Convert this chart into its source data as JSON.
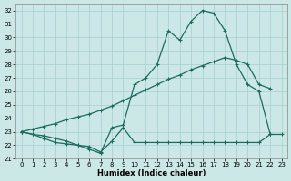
{
  "xlabel": "Humidex (Indice chaleur)",
  "bg_color": "#cce8e6",
  "grid_color": "#a8cfcc",
  "line_color": "#1a6b5a",
  "ylim": [
    21,
    32.5
  ],
  "yticks": [
    21,
    22,
    23,
    24,
    25,
    26,
    27,
    28,
    29,
    30,
    31,
    32
  ],
  "xticks": [
    0,
    1,
    2,
    3,
    4,
    5,
    6,
    7,
    8,
    9,
    10,
    11,
    12,
    13,
    14,
    15,
    16,
    17,
    18,
    19,
    20,
    21,
    22,
    23
  ],
  "line_upper_x": [
    0,
    1,
    2,
    3,
    4,
    5,
    6,
    7,
    8,
    9,
    10,
    11,
    12,
    13,
    14,
    15,
    16,
    17,
    18,
    19,
    20,
    21,
    22
  ],
  "line_upper_y": [
    23.0,
    22.8,
    22.7,
    22.5,
    22.3,
    22.0,
    21.7,
    21.4,
    23.3,
    23.5,
    26.5,
    27.0,
    28.0,
    30.5,
    29.8,
    31.2,
    32.0,
    31.8,
    30.5,
    28.0,
    26.5,
    26.0,
    22.8
  ],
  "line_mid_x": [
    0,
    1,
    2,
    3,
    4,
    5,
    6,
    7,
    8,
    9,
    10,
    11,
    12,
    13,
    14,
    15,
    16,
    17,
    18,
    19,
    20,
    21,
    22
  ],
  "line_mid_y": [
    23.0,
    23.2,
    23.4,
    23.6,
    23.9,
    24.1,
    24.3,
    24.6,
    24.9,
    25.3,
    25.7,
    26.1,
    26.5,
    26.9,
    27.2,
    27.6,
    27.9,
    28.2,
    28.5,
    28.3,
    28.0,
    26.5,
    26.2
  ],
  "line_low_x": [
    0,
    1,
    2,
    3,
    4,
    5,
    6,
    7,
    8,
    9,
    10,
    11,
    12,
    13,
    14,
    15,
    16,
    17,
    18,
    19,
    20,
    21,
    22,
    23
  ],
  "line_low_y": [
    23.0,
    22.8,
    22.5,
    22.2,
    22.1,
    22.0,
    21.9,
    21.5,
    22.3,
    23.3,
    22.2,
    22.2,
    22.2,
    22.2,
    22.2,
    22.2,
    22.2,
    22.2,
    22.2,
    22.2,
    22.2,
    22.2,
    22.8,
    22.8
  ]
}
